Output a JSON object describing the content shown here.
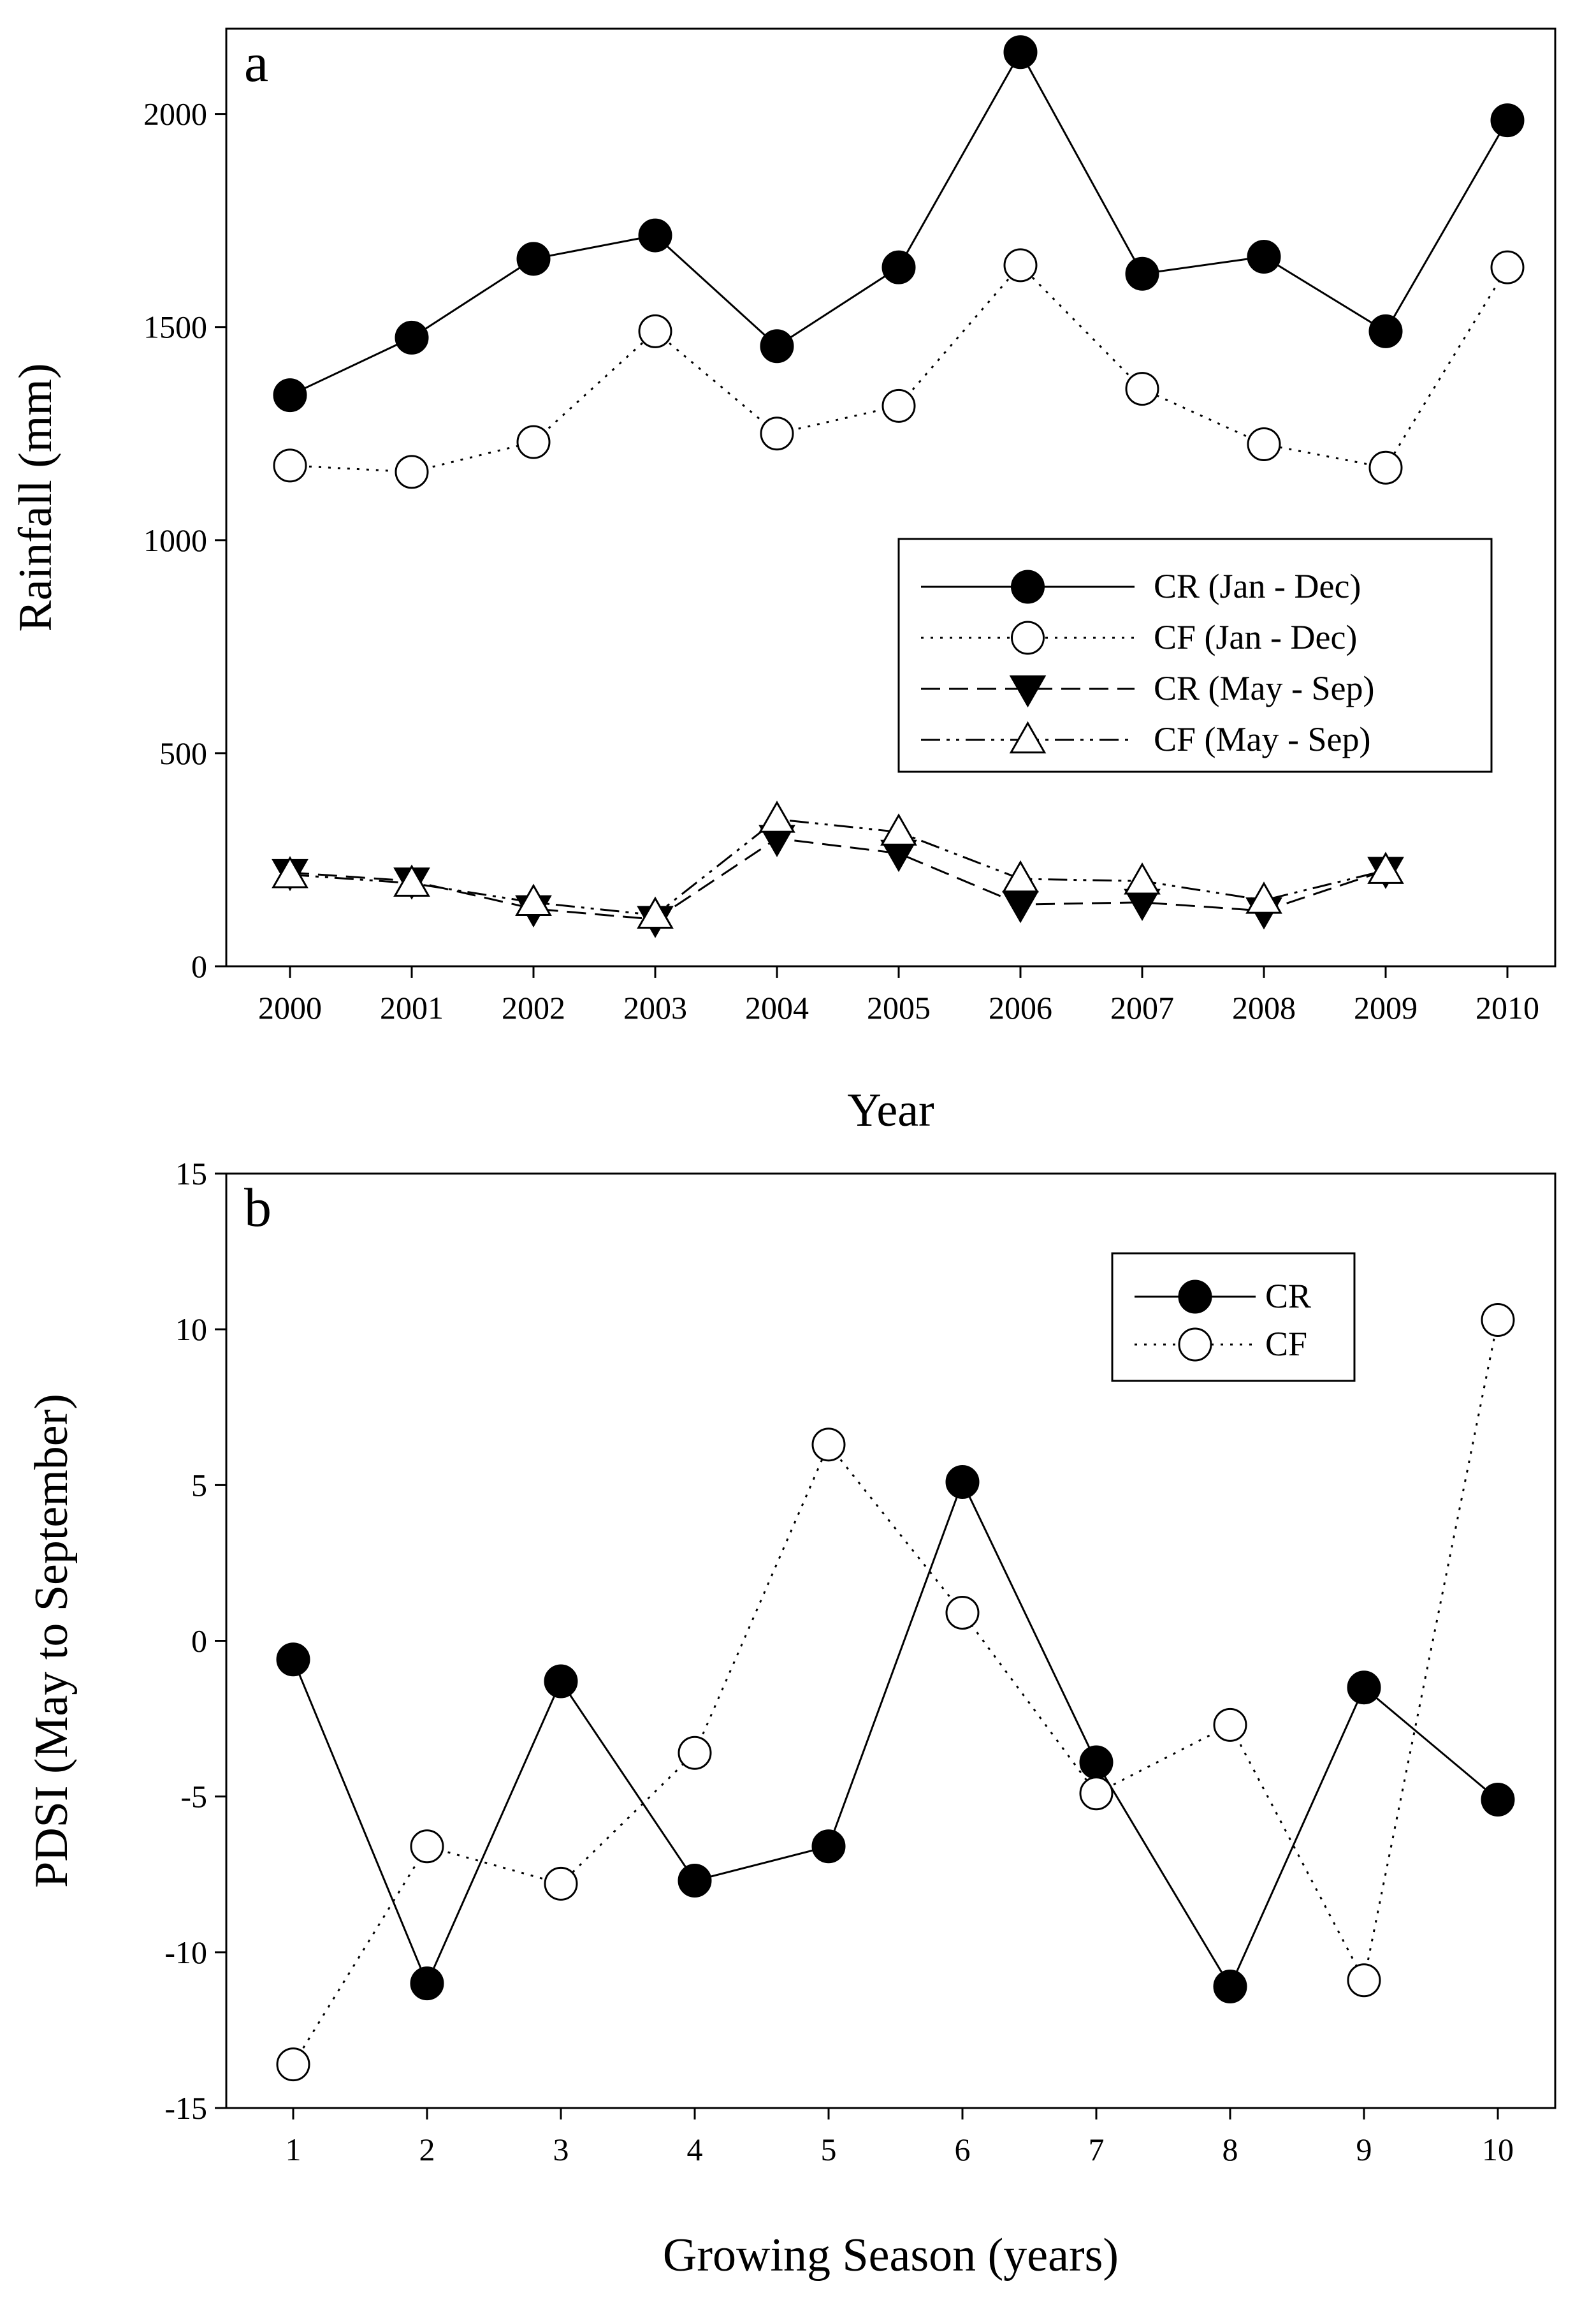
{
  "chart_data": [
    {
      "panel_label": "a",
      "type": "line",
      "xlabel": "Year",
      "ylabel": "Rainfall (mm)",
      "categories": [
        "2000",
        "2001",
        "2002",
        "2003",
        "2004",
        "2005",
        "2006",
        "2007",
        "2008",
        "2009",
        "2010"
      ],
      "yticks": [
        "0",
        "500",
        "1000",
        "1500",
        "2000"
      ],
      "ylim": [
        0,
        2200
      ],
      "series": [
        {
          "name": "CR (Jan - Dec)",
          "marker": "filled-circle",
          "line": "solid",
          "values": [
            1340,
            1475,
            1660,
            1715,
            1455,
            1640,
            2145,
            1625,
            1665,
            1490,
            1985
          ]
        },
        {
          "name": "CF (Jan - Dec)",
          "marker": "open-circle",
          "line": "dotted",
          "values": [
            1175,
            1160,
            1230,
            1490,
            1250,
            1315,
            1645,
            1355,
            1225,
            1170,
            1640
          ]
        },
        {
          "name": "CR (May - Sep)",
          "marker": "filled-triangle-down",
          "line": "dashed",
          "values": [
            220,
            200,
            135,
            110,
            300,
            265,
            145,
            150,
            130,
            225,
            null
          ]
        },
        {
          "name": "CF (May - Sep)",
          "marker": "open-triangle-up",
          "line": "dash-dot-dot",
          "values": [
            215,
            195,
            150,
            120,
            345,
            315,
            205,
            200,
            155,
            225,
            null
          ]
        }
      ],
      "legend_position": "center-right"
    },
    {
      "panel_label": "b",
      "type": "line",
      "xlabel": "Growing Season (years)",
      "ylabel": "PDSI (May to September)",
      "categories": [
        "1",
        "2",
        "3",
        "4",
        "5",
        "6",
        "7",
        "8",
        "9",
        "10"
      ],
      "yticks": [
        "-15",
        "-10",
        "-5",
        "0",
        "5",
        "10",
        "15"
      ],
      "ylim": [
        -15,
        15
      ],
      "series": [
        {
          "name": "CR",
          "marker": "filled-circle",
          "line": "solid",
          "values": [
            -0.6,
            -11.0,
            -1.3,
            -7.7,
            -6.6,
            5.1,
            -3.9,
            -11.1,
            -1.5,
            -5.1
          ]
        },
        {
          "name": "CF",
          "marker": "open-circle",
          "line": "dotted",
          "values": [
            -13.6,
            -6.6,
            -7.8,
            -3.6,
            6.3,
            0.9,
            -4.9,
            -2.7,
            -10.9,
            10.3
          ]
        }
      ],
      "legend_position": "top-right"
    }
  ]
}
